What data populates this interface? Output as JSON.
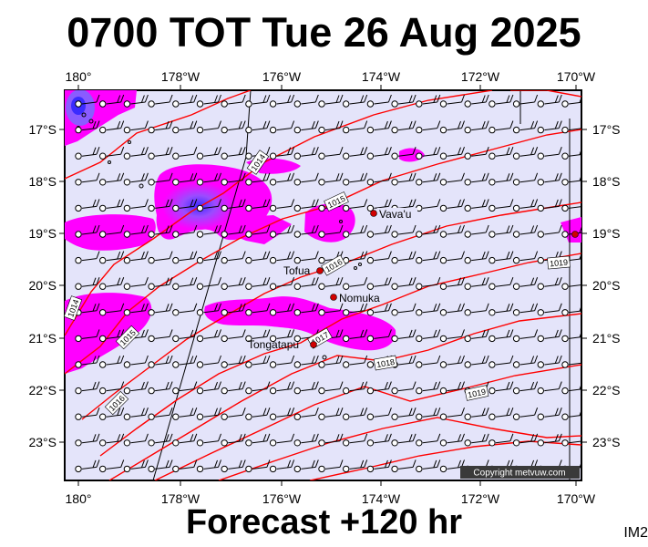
{
  "title": "0700 TOT Tue 26 Aug 2025",
  "footer": "Forecast +120 hr",
  "product_id": "IM2",
  "copyright": "Copyright metvuw.com",
  "longitude_labels": [
    "180°",
    "178°W",
    "176°W",
    "174°W",
    "172°W",
    "170°W"
  ],
  "latitude_labels": [
    "17°S",
    "18°S",
    "19°S",
    "20°S",
    "21°S",
    "22°S",
    "23°S"
  ],
  "places": [
    {
      "name": "Vava'u"
    },
    {
      "name": "Tofua"
    },
    {
      "name": "Nomuka"
    },
    {
      "name": "Tongatapu"
    }
  ],
  "isobar_labels": [
    "1014",
    "1015",
    "1016",
    "1014",
    "1015",
    "1016",
    "1017",
    "1018",
    "1019",
    "1019"
  ],
  "colors": {
    "map_background": "#e4e4fa",
    "isobar": "#ff0000",
    "rain_light": "#ff00ff",
    "rain_heavy": "#7a4cff",
    "place_marker": "#d00000"
  }
}
